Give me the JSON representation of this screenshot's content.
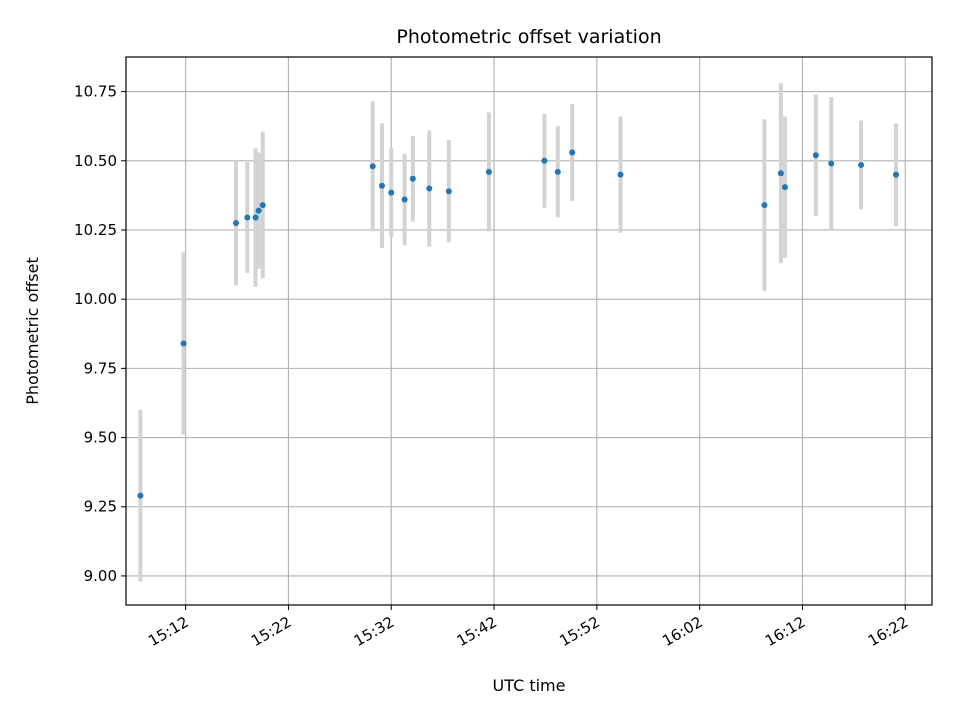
{
  "chart_data": {
    "type": "scatter",
    "title": "Photometric offset variation",
    "xlabel": "UTC time",
    "ylabel": "Photometric offset",
    "grid": true,
    "xlim": [
      "15:06:12",
      "16:24:36"
    ],
    "ylim": [
      8.895,
      10.875
    ],
    "x_ticks": [
      "15:12",
      "15:22",
      "15:32",
      "15:42",
      "15:52",
      "16:02",
      "16:12",
      "16:22"
    ],
    "y_ticks": [
      "9.00",
      "9.25",
      "9.50",
      "9.75",
      "10.00",
      "10.25",
      "10.50",
      "10.75"
    ],
    "colors": {
      "point": "#1f77b4",
      "errorbar": "#d3d3d3",
      "grid": "#b0b0b0"
    },
    "series": [
      {
        "points": [
          {
            "x": "15:07:36",
            "y": 9.29,
            "err": 0.31
          },
          {
            "x": "15:11:48",
            "y": 9.84,
            "err": 0.33
          },
          {
            "x": "15:16:54",
            "y": 10.275,
            "err": 0.225
          },
          {
            "x": "15:18:00",
            "y": 10.295,
            "err": 0.2
          },
          {
            "x": "15:18:48",
            "y": 10.295,
            "err": 0.25
          },
          {
            "x": "15:19:06",
            "y": 10.32,
            "err": 0.21
          },
          {
            "x": "15:19:30",
            "y": 10.34,
            "err": 0.265
          },
          {
            "x": "15:30:12",
            "y": 10.48,
            "err": 0.235
          },
          {
            "x": "15:31:06",
            "y": 10.41,
            "err": 0.225
          },
          {
            "x": "15:32:00",
            "y": 10.385,
            "err": 0.16
          },
          {
            "x": "15:33:18",
            "y": 10.36,
            "err": 0.165
          },
          {
            "x": "15:34:06",
            "y": 10.435,
            "err": 0.155
          },
          {
            "x": "15:35:42",
            "y": 10.4,
            "err": 0.21
          },
          {
            "x": "15:37:36",
            "y": 10.39,
            "err": 0.185
          },
          {
            "x": "15:41:30",
            "y": 10.46,
            "err": 0.215
          },
          {
            "x": "15:46:54",
            "y": 10.5,
            "err": 0.17
          },
          {
            "x": "15:48:12",
            "y": 10.46,
            "err": 0.165
          },
          {
            "x": "15:49:36",
            "y": 10.53,
            "err": 0.175
          },
          {
            "x": "15:54:18",
            "y": 10.45,
            "err": 0.21
          },
          {
            "x": "16:08:18",
            "y": 10.34,
            "err": 0.31
          },
          {
            "x": "16:09:54",
            "y": 10.455,
            "err": 0.325
          },
          {
            "x": "16:10:18",
            "y": 10.405,
            "err": 0.255
          },
          {
            "x": "16:13:18",
            "y": 10.52,
            "err": 0.22
          },
          {
            "x": "16:14:48",
            "y": 10.49,
            "err": 0.24
          },
          {
            "x": "16:17:42",
            "y": 10.485,
            "err": 0.16
          },
          {
            "x": "16:21:06",
            "y": 10.45,
            "err": 0.185
          }
        ]
      }
    ]
  }
}
